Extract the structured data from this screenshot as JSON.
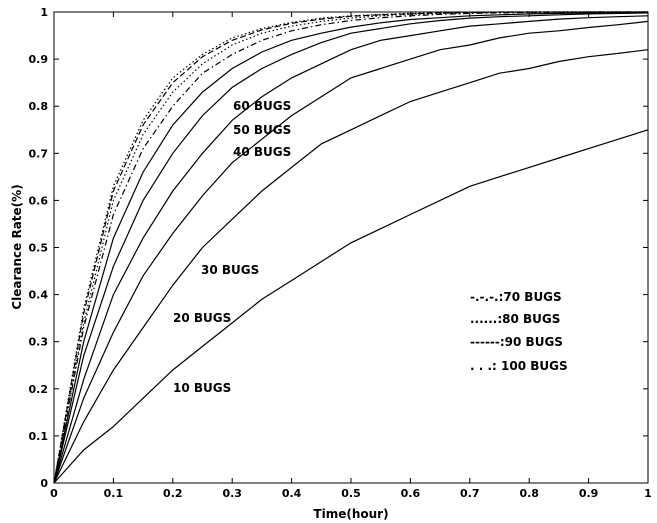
{
  "chart_data": {
    "type": "line",
    "title": "",
    "xlabel": "Time(hour)",
    "ylabel": "Clearance Rate(%)",
    "xlim": [
      0,
      1
    ],
    "ylim": [
      0,
      1
    ],
    "xticks": [
      "0",
      "0.1",
      "0.2",
      "0.3",
      "0.4",
      "0.5",
      "0.6",
      "0.7",
      "0.8",
      "0.9",
      "1"
    ],
    "yticks": [
      "0",
      "0.1",
      "0.2",
      "0.3",
      "0.4",
      "0.5",
      "0.6",
      "0.7",
      "0.8",
      "0.9",
      "1"
    ],
    "grid": false,
    "x": [
      0,
      0.05,
      0.1,
      0.15,
      0.2,
      0.25,
      0.3,
      0.35,
      0.4,
      0.45,
      0.5,
      0.55,
      0.6,
      0.65,
      0.7,
      0.75,
      0.8,
      0.85,
      0.9,
      0.95,
      1
    ],
    "series": [
      {
        "name": "10 BUGS",
        "style": "solid",
        "annotation": "10 BUGS",
        "values": [
          0,
          0.07,
          0.12,
          0.18,
          0.24,
          0.29,
          0.34,
          0.39,
          0.43,
          0.47,
          0.51,
          0.54,
          0.57,
          0.6,
          0.63,
          0.65,
          0.67,
          0.69,
          0.71,
          0.73,
          0.75
        ]
      },
      {
        "name": "20 BUGS",
        "style": "solid",
        "annotation": "20 BUGS",
        "values": [
          0,
          0.13,
          0.24,
          0.33,
          0.42,
          0.5,
          0.56,
          0.62,
          0.67,
          0.72,
          0.75,
          0.78,
          0.81,
          0.83,
          0.85,
          0.87,
          0.88,
          0.895,
          0.905,
          0.912,
          0.92
        ]
      },
      {
        "name": "30 BUGS",
        "style": "solid",
        "annotation": "30 BUGS",
        "values": [
          0,
          0.18,
          0.32,
          0.44,
          0.53,
          0.61,
          0.68,
          0.73,
          0.78,
          0.82,
          0.86,
          0.88,
          0.9,
          0.92,
          0.93,
          0.945,
          0.955,
          0.96,
          0.967,
          0.973,
          0.98
        ]
      },
      {
        "name": "40 BUGS",
        "style": "solid",
        "annotation": "40 BUGS",
        "values": [
          0,
          0.22,
          0.4,
          0.52,
          0.62,
          0.7,
          0.77,
          0.82,
          0.86,
          0.89,
          0.92,
          0.94,
          0.95,
          0.96,
          0.97,
          0.975,
          0.98,
          0.985,
          0.988,
          0.99,
          0.992
        ]
      },
      {
        "name": "50 BUGS",
        "style": "solid",
        "annotation": "50 BUGS",
        "values": [
          0,
          0.27,
          0.46,
          0.6,
          0.7,
          0.78,
          0.84,
          0.88,
          0.91,
          0.935,
          0.955,
          0.965,
          0.975,
          0.982,
          0.987,
          0.99,
          0.992,
          0.994,
          0.996,
          0.997,
          0.998
        ]
      },
      {
        "name": "60 BUGS",
        "style": "solid",
        "annotation": "60 BUGS",
        "values": [
          0,
          0.3,
          0.52,
          0.66,
          0.76,
          0.83,
          0.88,
          0.915,
          0.94,
          0.955,
          0.968,
          0.977,
          0.984,
          0.988,
          0.992,
          0.994,
          0.996,
          0.997,
          0.998,
          0.999,
          1.0
        ]
      },
      {
        "name": "70 BUGS",
        "style": "dashdot",
        "legend": "-.-.-.:70 BUGS",
        "values": [
          0,
          0.33,
          0.57,
          0.71,
          0.8,
          0.87,
          0.91,
          0.94,
          0.96,
          0.973,
          0.982,
          0.988,
          0.992,
          0.995,
          0.997,
          0.998,
          0.999,
          0.999,
          1.0,
          1.0,
          1.0
        ]
      },
      {
        "name": "80 BUGS",
        "style": "dotted",
        "legend": "......:80 BUGS",
        "values": [
          0,
          0.34,
          0.6,
          0.74,
          0.83,
          0.89,
          0.93,
          0.955,
          0.97,
          0.98,
          0.987,
          0.992,
          0.995,
          0.997,
          0.998,
          0.999,
          1.0,
          1.0,
          1.0,
          1.0,
          1.0
        ]
      },
      {
        "name": "90 BUGS",
        "style": "dashed",
        "legend": "------:90 BUGS",
        "values": [
          0,
          0.36,
          0.62,
          0.76,
          0.85,
          0.905,
          0.94,
          0.962,
          0.976,
          0.985,
          0.991,
          0.994,
          0.996,
          0.998,
          0.999,
          1.0,
          1.0,
          1.0,
          1.0,
          1.0,
          1.0
        ]
      },
      {
        "name": "100 BUGS",
        "style": "dotted",
        "legend": ". . .: 100 BUGS",
        "values": [
          0,
          0.37,
          0.63,
          0.77,
          0.86,
          0.91,
          0.945,
          0.965,
          0.978,
          0.987,
          0.992,
          0.995,
          0.997,
          0.998,
          0.999,
          1.0,
          1.0,
          1.0,
          1.0,
          1.0,
          1.0
        ]
      }
    ]
  }
}
